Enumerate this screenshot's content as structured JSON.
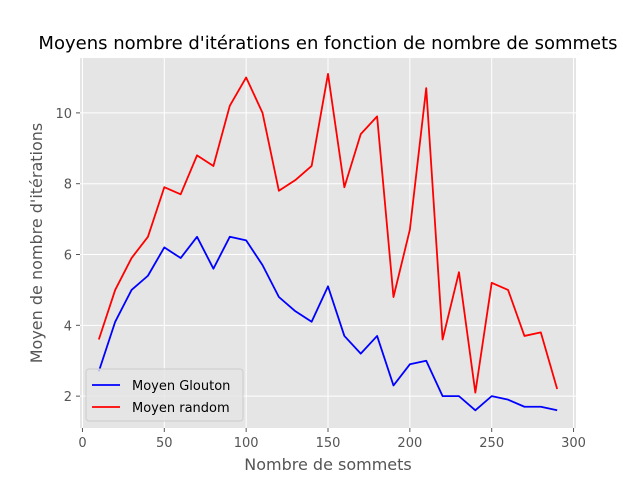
{
  "chart_data": {
    "type": "line",
    "title": "Moyens nombre d'itérations en fonction de nombre de sommets",
    "xlabel": "Nombre de sommets",
    "ylabel": "Moyen de nombre d'itérations",
    "xlim": [
      -1.5,
      301.5
    ],
    "ylim": [
      1.1,
      11.55
    ],
    "xticks": [
      0,
      50,
      100,
      150,
      200,
      250,
      300
    ],
    "yticks": [
      2,
      4,
      6,
      8,
      10
    ],
    "grid": true,
    "legend_position": "lower-left",
    "x": [
      10,
      20,
      30,
      40,
      50,
      60,
      70,
      80,
      90,
      100,
      110,
      120,
      130,
      140,
      150,
      160,
      170,
      180,
      190,
      200,
      210,
      220,
      230,
      240,
      250,
      260,
      270,
      280,
      290
    ],
    "series": [
      {
        "name": "Moyen Glouton",
        "color": "#0000ff",
        "values": [
          2.7,
          4.1,
          5.0,
          5.4,
          6.2,
          5.9,
          6.5,
          5.6,
          6.5,
          6.4,
          5.7,
          4.8,
          4.4,
          4.1,
          5.1,
          3.7,
          3.2,
          3.7,
          2.3,
          2.9,
          3.0,
          2.0,
          2.0,
          1.6,
          2.0,
          1.9,
          1.7,
          1.7,
          1.6
        ]
      },
      {
        "name": "Moyen random",
        "color": "#ff0000",
        "values": [
          3.6,
          5.0,
          5.9,
          6.5,
          7.9,
          7.7,
          8.8,
          8.5,
          10.2,
          11.0,
          10.0,
          7.8,
          8.1,
          8.5,
          11.1,
          7.9,
          9.4,
          9.9,
          4.8,
          6.7,
          10.7,
          3.6,
          5.5,
          2.1,
          5.2,
          5.0,
          3.7,
          3.8,
          2.2
        ]
      }
    ],
    "style": {
      "plot_background": "#e5e5e5",
      "grid_color": "#ffffff",
      "text_color": "#555555"
    }
  }
}
